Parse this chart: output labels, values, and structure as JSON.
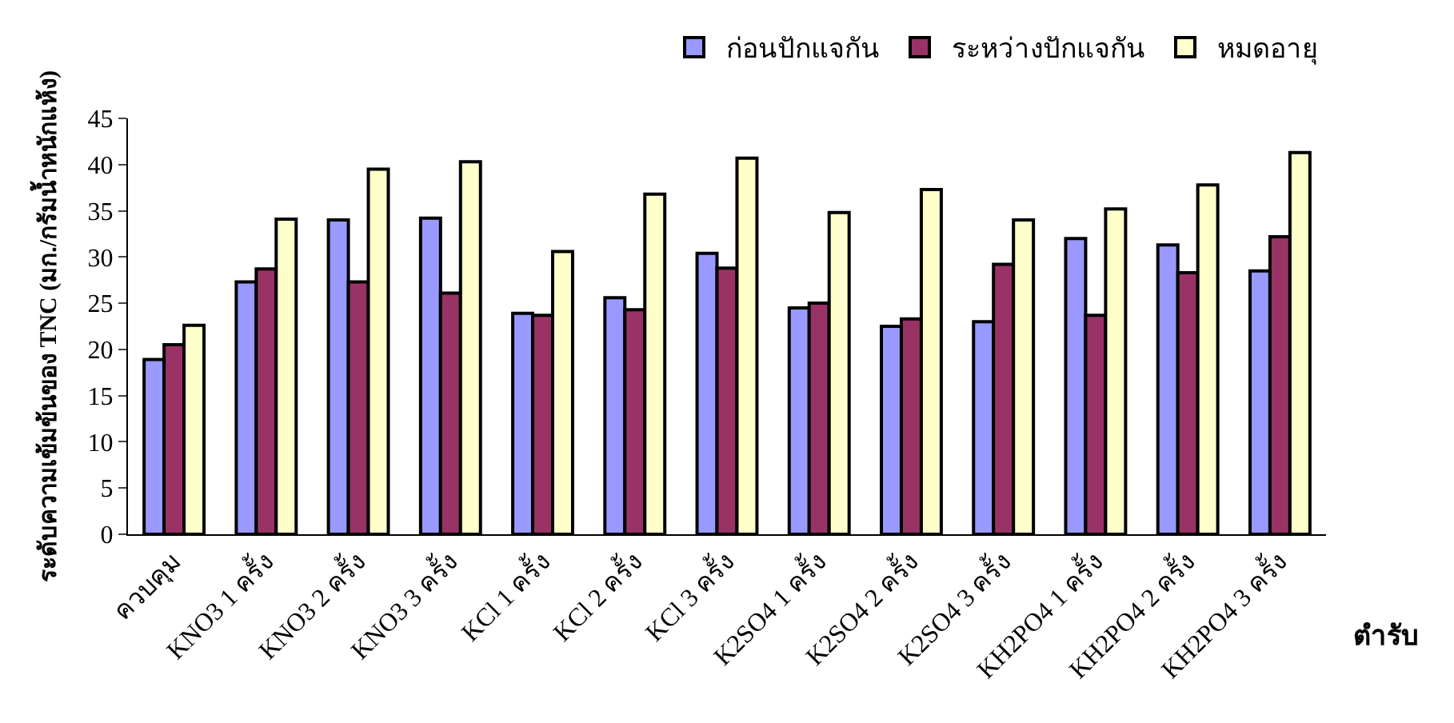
{
  "chart_data": {
    "type": "bar",
    "xlabel": "ตำรับ",
    "ylabel": "ระดับความเข้มข้นของ TNC (มก./กรัมน้ำหนักแห้ง)",
    "categories": [
      "ควบคุม",
      "KNO3 1 ครั้ง",
      "KNO3 2 ครั้ง",
      "KNO3 3 ครั้ง",
      "KCl 1 ครั้ง",
      "KCl 2 ครั้ง",
      "KCl 3 ครั้ง",
      "K2SO4 1 ครั้ง",
      "K2SO4 2 ครั้ง",
      "K2SO4 3 ครั้ง",
      "KH2PO4 1 ครั้ง",
      "KH2PO4 2 ครั้ง",
      "KH2PO4 3 ครั้ง"
    ],
    "series": [
      {
        "name": "ก่อนปักแจกัน",
        "color": "#9999ff",
        "values": [
          18.9,
          27.3,
          34.0,
          34.2,
          23.9,
          25.6,
          30.4,
          24.5,
          22.5,
          23.0,
          32.0,
          31.3,
          28.5
        ]
      },
      {
        "name": "ระหว่างปักแจกัน",
        "color": "#993366",
        "values": [
          20.5,
          28.7,
          27.3,
          26.1,
          23.7,
          24.3,
          28.8,
          25.0,
          23.3,
          29.2,
          23.7,
          28.3,
          32.2
        ]
      },
      {
        "name": "หมดอายุ",
        "color": "#ffffcc",
        "values": [
          22.6,
          34.1,
          39.5,
          40.3,
          30.6,
          36.8,
          40.7,
          34.8,
          37.3,
          34.0,
          35.2,
          37.8,
          41.3
        ]
      }
    ],
    "ylim": [
      0,
      45
    ],
    "yticks": [
      0,
      5,
      10,
      15,
      20,
      25,
      30,
      35,
      40,
      45
    ],
    "legend": "top right"
  }
}
